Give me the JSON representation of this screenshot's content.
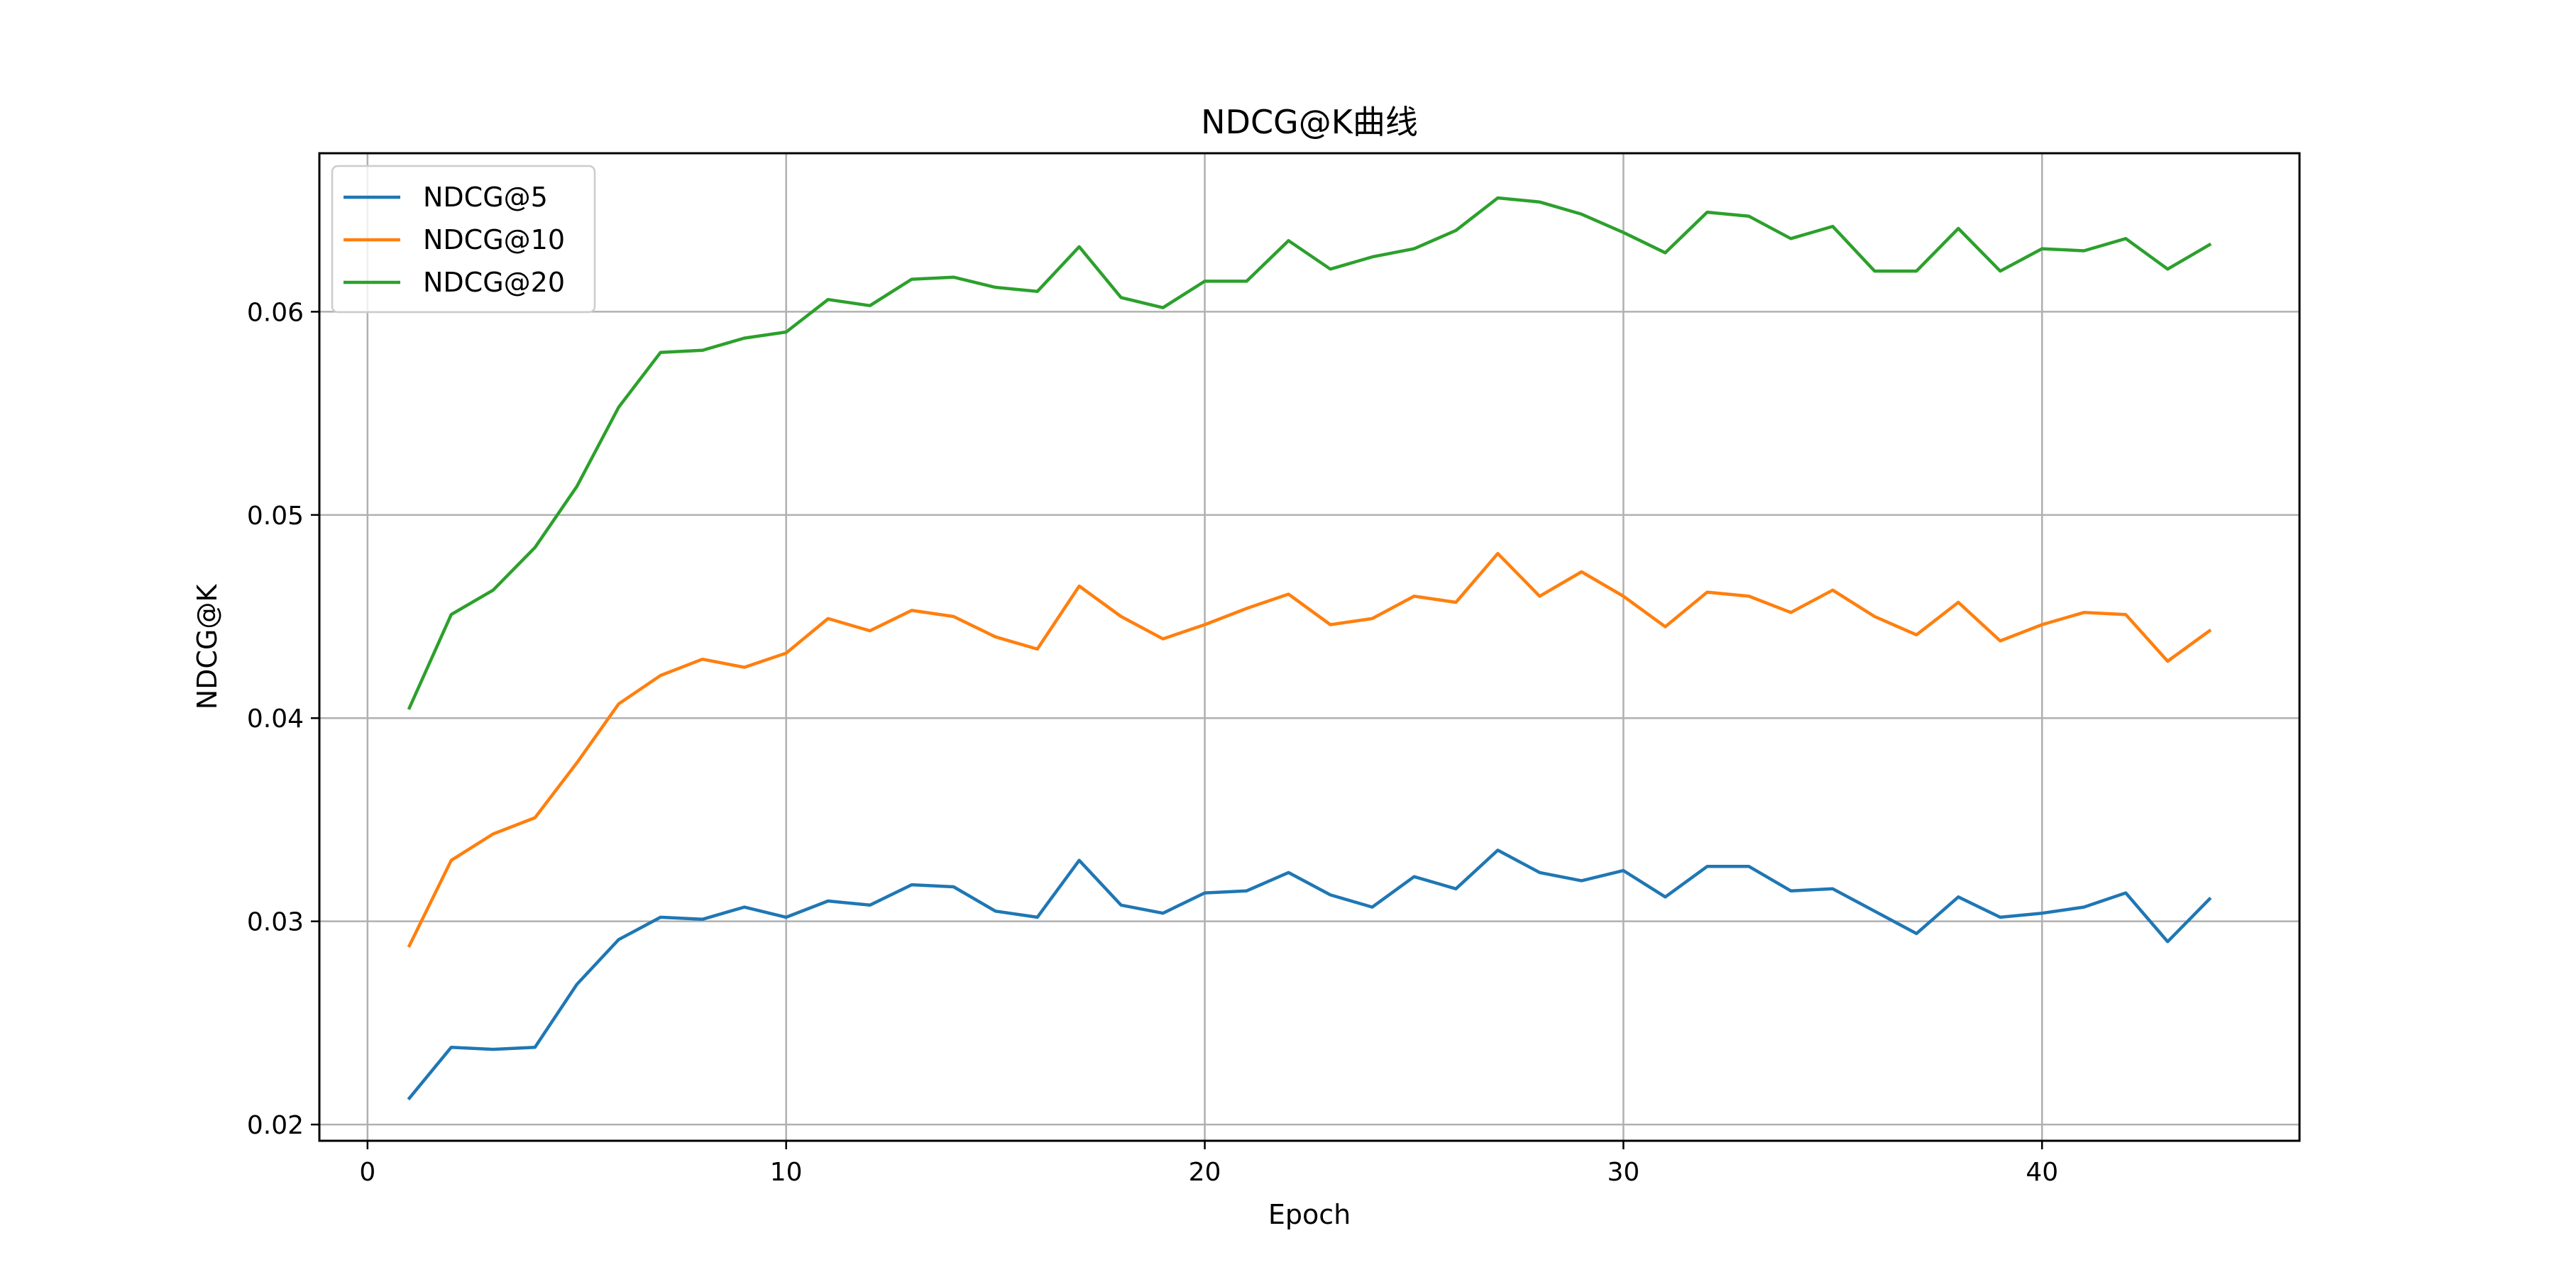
{
  "chart_data": {
    "type": "line",
    "title": "NDCG@K曲线",
    "xlabel": "Epoch",
    "ylabel": "NDCG@K",
    "xlim": [
      -1.15,
      46.15
    ],
    "ylim": [
      0.0192,
      0.0678
    ],
    "x_ticks": [
      0,
      10,
      20,
      30,
      40
    ],
    "y_ticks": [
      0.02,
      0.03,
      0.04,
      0.05,
      0.06
    ],
    "x_tick_labels": [
      "0",
      "10",
      "20",
      "30",
      "40"
    ],
    "y_tick_labels": [
      "0.02",
      "0.03",
      "0.04",
      "0.05",
      "0.06"
    ],
    "grid": true,
    "legend_position": "top-left",
    "x": [
      1,
      2,
      3,
      4,
      5,
      6,
      7,
      8,
      9,
      10,
      11,
      12,
      13,
      14,
      15,
      16,
      17,
      18,
      19,
      20,
      21,
      22,
      23,
      24,
      25,
      26,
      27,
      28,
      29,
      30,
      31,
      32,
      33,
      34,
      35,
      36,
      37,
      38,
      39,
      40,
      41,
      42,
      43,
      44
    ],
    "series": [
      {
        "name": "NDCG@5",
        "color": "#1f77b4",
        "values": [
          0.0213,
          0.0238,
          0.0237,
          0.0238,
          0.0269,
          0.0291,
          0.0302,
          0.0301,
          0.0307,
          0.0302,
          0.031,
          0.0308,
          0.0318,
          0.0317,
          0.0305,
          0.0302,
          0.033,
          0.0308,
          0.0304,
          0.0314,
          0.0315,
          0.0324,
          0.0313,
          0.0307,
          0.0322,
          0.0316,
          0.0335,
          0.0324,
          0.032,
          0.0325,
          0.0312,
          0.0327,
          0.0327,
          0.0315,
          0.0316,
          0.0305,
          0.0294,
          0.0312,
          0.0302,
          0.0304,
          0.0307,
          0.0314,
          0.029,
          0.0311
        ]
      },
      {
        "name": "NDCG@10",
        "color": "#ff7f0e",
        "values": [
          0.0288,
          0.033,
          0.0343,
          0.0351,
          0.0378,
          0.0407,
          0.0421,
          0.0429,
          0.0425,
          0.0432,
          0.0449,
          0.0443,
          0.0453,
          0.045,
          0.044,
          0.0434,
          0.0465,
          0.045,
          0.0439,
          0.0446,
          0.0454,
          0.0461,
          0.0446,
          0.0449,
          0.046,
          0.0457,
          0.0481,
          0.046,
          0.0472,
          0.046,
          0.0445,
          0.0462,
          0.046,
          0.0452,
          0.0463,
          0.045,
          0.0441,
          0.0457,
          0.0438,
          0.0446,
          0.0452,
          0.0451,
          0.0428,
          0.0443
        ]
      },
      {
        "name": "NDCG@20",
        "color": "#2ca02c",
        "values": [
          0.0405,
          0.0451,
          0.0463,
          0.0484,
          0.0514,
          0.0553,
          0.058,
          0.0581,
          0.0587,
          0.059,
          0.0606,
          0.0603,
          0.0616,
          0.0617,
          0.0612,
          0.061,
          0.0632,
          0.0607,
          0.0602,
          0.0615,
          0.0615,
          0.0635,
          0.0621,
          0.0627,
          0.0631,
          0.064,
          0.0656,
          0.0654,
          0.0648,
          0.0639,
          0.0629,
          0.0649,
          0.0647,
          0.0636,
          0.0642,
          0.062,
          0.062,
          0.0641,
          0.062,
          0.0631,
          0.063,
          0.0636,
          0.0621,
          0.0633
        ]
      }
    ]
  }
}
